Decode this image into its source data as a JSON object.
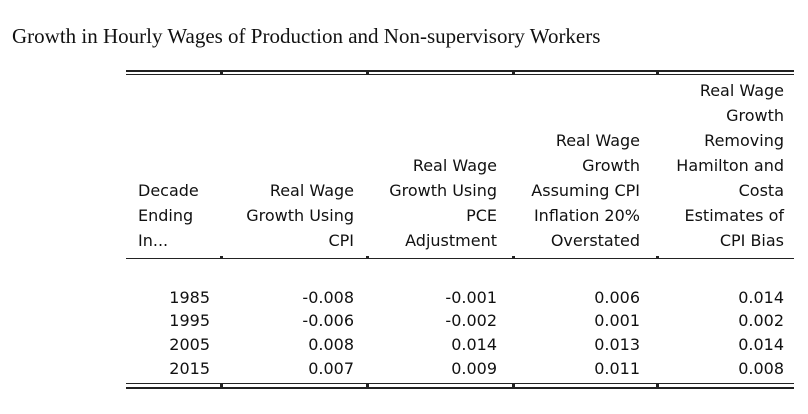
{
  "title": "Growth in Hourly Wages of Production and Non-supervisory Workers",
  "columns": [
    "Decade\nEnding\nIn...",
    "Real Wage\nGrowth Using\nCPI",
    "Real Wage\nGrowth Using\nPCE\nAdjustment",
    "Real Wage\nGrowth\nAssuming CPI\nInflation 20%\nOverstated",
    "Real Wage\nGrowth\nRemoving\nHamilton and\nCosta\nEstimates of\nCPI Bias"
  ],
  "rows": [
    [
      "1985",
      "-0.008",
      "-0.001",
      "0.006",
      "0.014"
    ],
    [
      "1995",
      "-0.006",
      "-0.002",
      "0.001",
      "0.002"
    ],
    [
      "2005",
      "0.008",
      "0.014",
      "0.013",
      "0.014"
    ],
    [
      "2015",
      "0.007",
      "0.009",
      "0.011",
      "0.008"
    ]
  ]
}
